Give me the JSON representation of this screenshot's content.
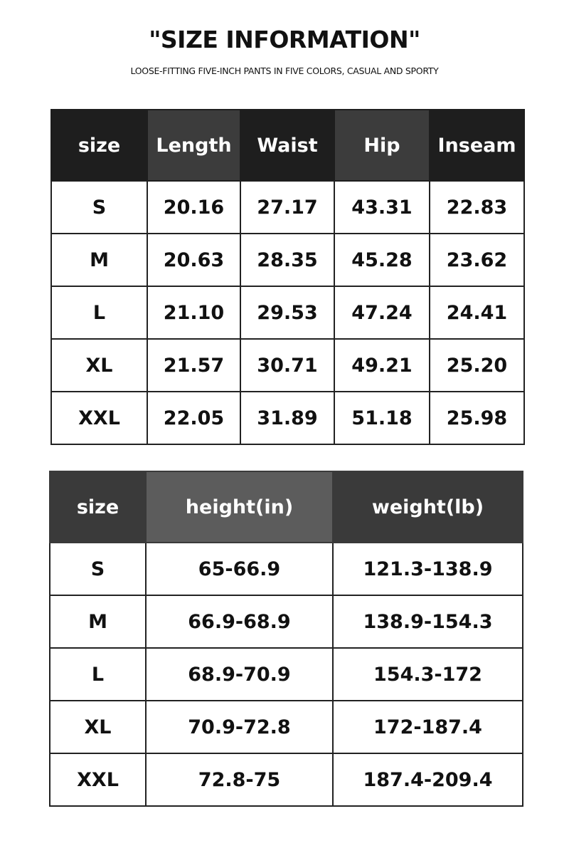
{
  "title": "\"SIZE INFORMATION\"",
  "subtitle": "LOOSE-FITTING FIVE-INCH PANTS IN FIVE COLORS, CASUAL AND SPORTY",
  "table1": {
    "headers": [
      "size",
      "Length",
      "Waist",
      "Hip",
      "Inseam"
    ],
    "rows": [
      [
        "S",
        "20.16",
        "27.17",
        "43.31",
        "22.83"
      ],
      [
        "M",
        "20.63",
        "28.35",
        "45.28",
        "23.62"
      ],
      [
        "L",
        "21.10",
        "29.53",
        "47.24",
        "24.41"
      ],
      [
        "XL",
        "21.57",
        "30.71",
        "49.21",
        "25.20"
      ],
      [
        "XXL",
        "22.05",
        "31.89",
        "51.18",
        "25.98"
      ]
    ]
  },
  "table2": {
    "headers": [
      "size",
      "height(in)",
      "weight(lb)"
    ],
    "rows": [
      [
        "S",
        "65-66.9",
        "121.3-138.9"
      ],
      [
        "M",
        "66.9-68.9",
        "138.9-154.3"
      ],
      [
        "L",
        "68.9-70.9",
        "154.3-172"
      ],
      [
        "XL",
        "70.9-72.8",
        "172-187.4"
      ],
      [
        "XXL",
        "72.8-75",
        "187.4-209.4"
      ]
    ]
  },
  "colors": {
    "header_dark": "#1e1e1e",
    "header_mid": "#3c3c3c",
    "header2_light": "#5c5c5c"
  }
}
